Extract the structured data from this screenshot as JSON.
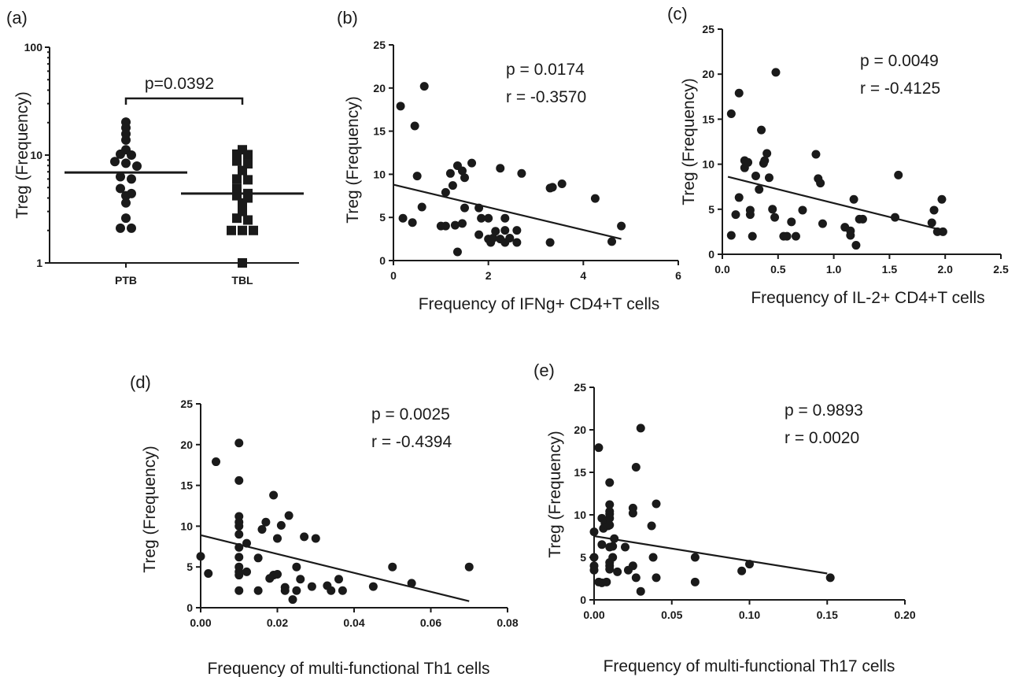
{
  "chart_data": [
    {
      "panel": "(a)",
      "type": "scatter",
      "ylabel": "Treg (Frequency)",
      "yscale": "log",
      "ylim": [
        1,
        100
      ],
      "yticks": [
        1,
        10,
        100
      ],
      "yticklabels": [
        "1",
        "10",
        "100"
      ],
      "categories": [
        "PTB",
        "TBL"
      ],
      "series": [
        {
          "category": "PTB",
          "median": 6.9,
          "values": [
            20.2,
            17.9,
            15.7,
            13.8,
            11.2,
            10.2,
            10.0,
            8.7,
            8.4,
            7.9,
            6.3,
            6.0,
            4.9,
            4.4,
            4.2,
            3.6,
            2.6,
            2.1,
            2.1
          ]
        },
        {
          "category": "TBL",
          "median": 4.4,
          "values": [
            11.2,
            10.2,
            10.1,
            8.8,
            8.3,
            7.2,
            6.0,
            5.9,
            4.9,
            4.4,
            4.2,
            4.0,
            3.6,
            3.0,
            2.6,
            2.5,
            2.0,
            2.0,
            2.0,
            1.0
          ]
        }
      ],
      "annotations": [
        {
          "text": "p=0.0392"
        }
      ]
    },
    {
      "panel": "(b)",
      "type": "scatter",
      "xlabel": "Frequency of IFNg+ CD4+T cells",
      "ylabel": "Treg (Frequency)",
      "xlim": [
        0,
        6
      ],
      "ylim": [
        0,
        25
      ],
      "xticks": [
        0,
        2,
        4,
        6
      ],
      "xticklabels": [
        "0",
        "2",
        "4",
        "6"
      ],
      "yticks": [
        0,
        5,
        10,
        15,
        20,
        25
      ],
      "yticklabels": [
        "0",
        "5",
        "10",
        "15",
        "20",
        "25"
      ],
      "points": [
        [
          0.15,
          17.9
        ],
        [
          0.65,
          20.2
        ],
        [
          0.45,
          15.6
        ],
        [
          0.5,
          9.8
        ],
        [
          0.2,
          4.9
        ],
        [
          0.4,
          4.4
        ],
        [
          0.6,
          6.2
        ],
        [
          1.0,
          4.0
        ],
        [
          1.1,
          4.0
        ],
        [
          1.1,
          7.9
        ],
        [
          1.2,
          10.1
        ],
        [
          1.25,
          8.7
        ],
        [
          1.3,
          4.1
        ],
        [
          1.35,
          11.0
        ],
        [
          1.45,
          10.4
        ],
        [
          1.5,
          9.6
        ],
        [
          1.45,
          4.3
        ],
        [
          1.5,
          6.1
        ],
        [
          1.35,
          1.0
        ],
        [
          1.65,
          11.3
        ],
        [
          1.8,
          6.1
        ],
        [
          1.8,
          3.0
        ],
        [
          1.85,
          4.9
        ],
        [
          2.0,
          4.9
        ],
        [
          2.0,
          2.5
        ],
        [
          2.05,
          2.1
        ],
        [
          2.1,
          2.6
        ],
        [
          2.15,
          3.4
        ],
        [
          2.25,
          10.7
        ],
        [
          2.25,
          2.5
        ],
        [
          2.35,
          4.9
        ],
        [
          2.35,
          3.5
        ],
        [
          2.35,
          2.1
        ],
        [
          2.45,
          2.6
        ],
        [
          2.6,
          3.5
        ],
        [
          2.6,
          2.1
        ],
        [
          2.7,
          10.1
        ],
        [
          3.3,
          8.4
        ],
        [
          3.35,
          8.5
        ],
        [
          3.3,
          2.1
        ],
        [
          3.55,
          8.9
        ],
        [
          4.25,
          7.2
        ],
        [
          4.6,
          2.2
        ],
        [
          4.8,
          4.0
        ]
      ],
      "fit_line": [
        [
          0,
          8.8
        ],
        [
          4.8,
          2.5
        ]
      ],
      "annotations": [
        {
          "text": "p = 0.0174"
        },
        {
          "text": "r = -0.3570"
        }
      ]
    },
    {
      "panel": "(c)",
      "type": "scatter",
      "xlabel": "Frequency of IL-2+ CD4+T cells",
      "ylabel": "Treg (Frequency)",
      "xlim": [
        0,
        2.5
      ],
      "ylim": [
        0,
        25
      ],
      "xticks": [
        0,
        0.5,
        1.0,
        1.5,
        2.0,
        2.5
      ],
      "xticklabels": [
        "0.0",
        "0.5",
        "1.0",
        "1.5",
        "2.0",
        "2.5"
      ],
      "yticks": [
        0,
        5,
        10,
        15,
        20,
        25
      ],
      "yticklabels": [
        "0",
        "5",
        "10",
        "15",
        "20",
        "25"
      ],
      "points": [
        [
          0.08,
          15.6
        ],
        [
          0.08,
          2.1
        ],
        [
          0.15,
          17.9
        ],
        [
          0.12,
          4.4
        ],
        [
          0.15,
          6.3
        ],
        [
          0.2,
          10.4
        ],
        [
          0.2,
          9.6
        ],
        [
          0.23,
          10.2
        ],
        [
          0.25,
          4.4
        ],
        [
          0.25,
          4.9
        ],
        [
          0.27,
          2.0
        ],
        [
          0.3,
          8.7
        ],
        [
          0.33,
          7.2
        ],
        [
          0.35,
          13.8
        ],
        [
          0.37,
          10.1
        ],
        [
          0.38,
          10.4
        ],
        [
          0.4,
          11.2
        ],
        [
          0.42,
          8.5
        ],
        [
          0.45,
          5.0
        ],
        [
          0.47,
          4.1
        ],
        [
          0.48,
          20.2
        ],
        [
          0.55,
          2.0
        ],
        [
          0.58,
          2.0
        ],
        [
          0.62,
          3.6
        ],
        [
          0.66,
          2.0
        ],
        [
          0.72,
          4.9
        ],
        [
          0.84,
          11.1
        ],
        [
          0.86,
          8.4
        ],
        [
          0.88,
          7.9
        ],
        [
          0.9,
          3.4
        ],
        [
          1.1,
          3.0
        ],
        [
          1.15,
          2.1
        ],
        [
          1.15,
          2.6
        ],
        [
          1.18,
          6.1
        ],
        [
          1.2,
          1.0
        ],
        [
          1.23,
          3.9
        ],
        [
          1.26,
          3.9
        ],
        [
          1.55,
          4.1
        ],
        [
          1.58,
          8.8
        ],
        [
          1.88,
          3.5
        ],
        [
          1.9,
          4.9
        ],
        [
          1.93,
          2.5
        ],
        [
          1.97,
          6.1
        ],
        [
          1.98,
          2.5
        ]
      ],
      "fit_line": [
        [
          0.05,
          8.6
        ],
        [
          2.0,
          2.6
        ]
      ],
      "annotations": [
        {
          "text": "p = 0.0049"
        },
        {
          "text": "r = -0.4125"
        }
      ]
    },
    {
      "panel": "(d)",
      "type": "scatter",
      "xlabel": "Frequency of multi-functional Th1 cells",
      "ylabel": "Treg (Frequency)",
      "xlim": [
        0,
        0.08
      ],
      "ylim": [
        0,
        25
      ],
      "xticks": [
        0,
        0.02,
        0.04,
        0.06,
        0.08
      ],
      "xticklabels": [
        "0.00",
        "0.02",
        "0.04",
        "0.06",
        "0.08"
      ],
      "yticks": [
        0,
        5,
        10,
        15,
        20,
        25
      ],
      "yticklabels": [
        "0",
        "5",
        "10",
        "15",
        "20",
        "25"
      ],
      "points": [
        [
          0.0,
          6.3
        ],
        [
          0.002,
          4.2
        ],
        [
          0.004,
          17.9
        ],
        [
          0.01,
          20.2
        ],
        [
          0.01,
          15.6
        ],
        [
          0.01,
          11.2
        ],
        [
          0.01,
          10.5
        ],
        [
          0.01,
          10.0
        ],
        [
          0.01,
          9.0
        ],
        [
          0.01,
          7.4
        ],
        [
          0.01,
          6.2
        ],
        [
          0.01,
          5.0
        ],
        [
          0.01,
          4.4
        ],
        [
          0.01,
          4.0
        ],
        [
          0.01,
          2.1
        ],
        [
          0.012,
          7.9
        ],
        [
          0.012,
          4.4
        ],
        [
          0.015,
          6.1
        ],
        [
          0.015,
          2.1
        ],
        [
          0.016,
          9.6
        ],
        [
          0.017,
          10.5
        ],
        [
          0.018,
          3.6
        ],
        [
          0.019,
          13.8
        ],
        [
          0.019,
          4.0
        ],
        [
          0.02,
          8.5
        ],
        [
          0.02,
          4.1
        ],
        [
          0.021,
          10.1
        ],
        [
          0.022,
          2.5
        ],
        [
          0.022,
          2.1
        ],
        [
          0.023,
          11.3
        ],
        [
          0.024,
          1.0
        ],
        [
          0.025,
          5.0
        ],
        [
          0.025,
          2.1
        ],
        [
          0.026,
          3.5
        ],
        [
          0.027,
          8.7
        ],
        [
          0.029,
          2.6
        ],
        [
          0.03,
          8.5
        ],
        [
          0.033,
          2.7
        ],
        [
          0.034,
          2.1
        ],
        [
          0.036,
          3.5
        ],
        [
          0.037,
          2.1
        ],
        [
          0.045,
          2.6
        ],
        [
          0.05,
          5.0
        ],
        [
          0.055,
          3.0
        ],
        [
          0.07,
          5.0
        ]
      ],
      "fit_line": [
        [
          0,
          8.9
        ],
        [
          0.07,
          0.8
        ]
      ],
      "annotations": [
        {
          "text": "p = 0.0025"
        },
        {
          "text": "r = -0.4394"
        }
      ]
    },
    {
      "panel": "(e)",
      "type": "scatter",
      "xlabel": "Frequency of multi-functional Th17 cells",
      "ylabel": "Treg (Frequency)",
      "xlim": [
        0,
        0.2
      ],
      "ylim": [
        0,
        25
      ],
      "xticks": [
        0,
        0.05,
        0.1,
        0.15,
        0.2
      ],
      "xticklabels": [
        "0.00",
        "0.05",
        "0.10",
        "0.15",
        "0.20"
      ],
      "yticks": [
        0,
        5,
        10,
        15,
        20,
        25
      ],
      "yticklabels": [
        "0",
        "5",
        "10",
        "15",
        "20",
        "25"
      ],
      "points": [
        [
          0.0,
          8.0
        ],
        [
          0.0,
          5.0
        ],
        [
          0.0,
          4.0
        ],
        [
          0.0,
          3.5
        ],
        [
          0.003,
          17.9
        ],
        [
          0.003,
          2.1
        ],
        [
          0.005,
          9.6
        ],
        [
          0.005,
          2.0
        ],
        [
          0.005,
          6.5
        ],
        [
          0.006,
          8.4
        ],
        [
          0.007,
          9.0
        ],
        [
          0.008,
          2.1
        ],
        [
          0.009,
          8.7
        ],
        [
          0.01,
          13.8
        ],
        [
          0.01,
          11.2
        ],
        [
          0.01,
          10.4
        ],
        [
          0.01,
          10.1
        ],
        [
          0.01,
          9.6
        ],
        [
          0.01,
          8.8
        ],
        [
          0.01,
          6.2
        ],
        [
          0.01,
          4.4
        ],
        [
          0.01,
          4.0
        ],
        [
          0.01,
          3.6
        ],
        [
          0.012,
          6.3
        ],
        [
          0.012,
          5.0
        ],
        [
          0.013,
          7.2
        ],
        [
          0.015,
          3.3
        ],
        [
          0.02,
          6.2
        ],
        [
          0.022,
          3.5
        ],
        [
          0.025,
          10.8
        ],
        [
          0.025,
          10.2
        ],
        [
          0.025,
          4.0
        ],
        [
          0.027,
          2.6
        ],
        [
          0.027,
          15.6
        ],
        [
          0.03,
          20.2
        ],
        [
          0.03,
          1.0
        ],
        [
          0.037,
          8.7
        ],
        [
          0.038,
          5.0
        ],
        [
          0.04,
          2.6
        ],
        [
          0.04,
          11.3
        ],
        [
          0.065,
          5.0
        ],
        [
          0.065,
          2.1
        ],
        [
          0.095,
          3.4
        ],
        [
          0.1,
          4.2
        ],
        [
          0.152,
          2.6
        ]
      ],
      "fit_line": [
        [
          0,
          7.5
        ],
        [
          0.15,
          3.1
        ]
      ],
      "annotations": [
        {
          "text": "p = 0.9893"
        },
        {
          "text": "r = 0.0020"
        }
      ]
    }
  ]
}
